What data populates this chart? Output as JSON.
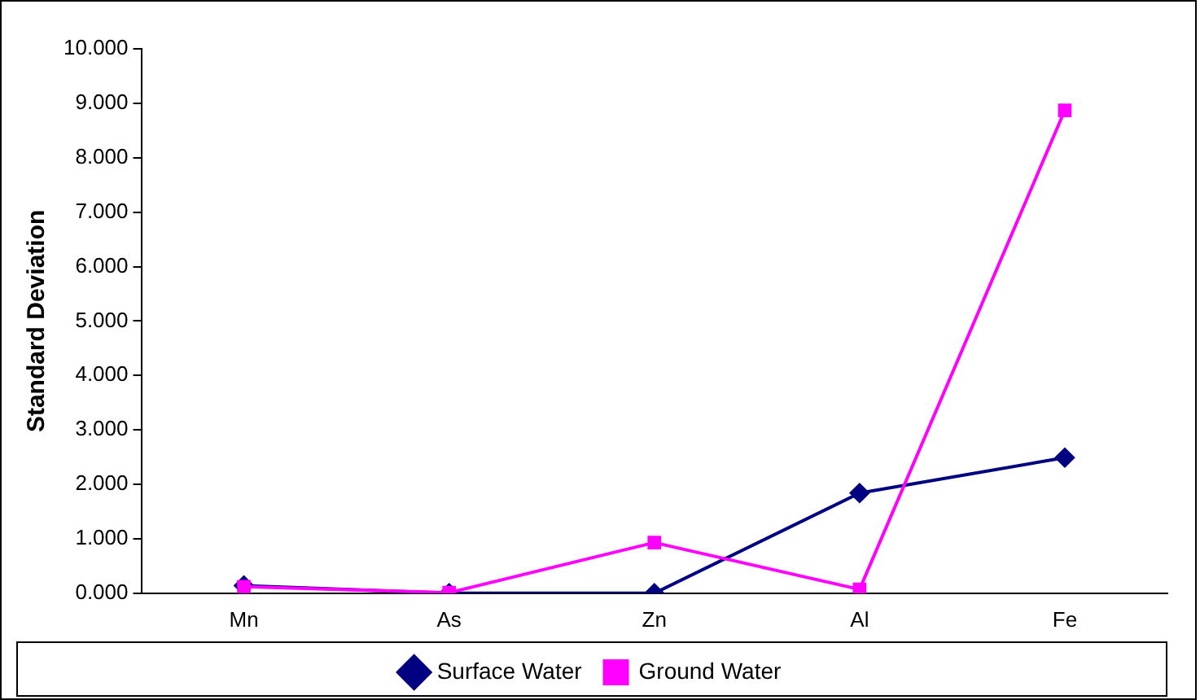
{
  "chart_data": {
    "type": "line",
    "ylabel": "Standard Deviation",
    "categories": [
      "Mn",
      "As",
      "Zn",
      "Al",
      "Fe"
    ],
    "series": [
      {
        "name": "Surface Water",
        "color": "#000080",
        "marker": "diamond",
        "values": [
          0.14,
          0,
          0,
          1.84,
          2.49
        ]
      },
      {
        "name": "Ground Water",
        "color": "#ff00ff",
        "marker": "square",
        "values": [
          0.12,
          0.01,
          0.93,
          0.07,
          8.87
        ]
      }
    ],
    "ylim": [
      0,
      10
    ],
    "yticks": [
      {
        "value": 0,
        "label": "0.000"
      },
      {
        "value": 1,
        "label": "1.000"
      },
      {
        "value": 2,
        "label": "2.000"
      },
      {
        "value": 3,
        "label": "3.000"
      },
      {
        "value": 4,
        "label": "4.000"
      },
      {
        "value": 5,
        "label": "5.000"
      },
      {
        "value": 6,
        "label": "6.000"
      },
      {
        "value": 7,
        "label": "7.000"
      },
      {
        "value": 8,
        "label": "8.000"
      },
      {
        "value": 9,
        "label": "9.000"
      },
      {
        "value": 10,
        "label": "10.000"
      }
    ],
    "grid": false,
    "legend": "bottom",
    "line_style": "solid"
  }
}
